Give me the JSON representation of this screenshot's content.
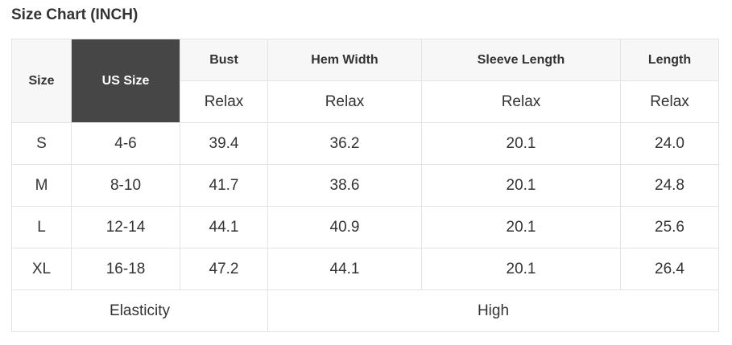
{
  "title": "Size Chart (INCH)",
  "headers": {
    "size": "Size",
    "us_size": "US Size",
    "bust": "Bust",
    "hem": "Hem Width",
    "sleeve": "Sleeve Length",
    "length": "Length"
  },
  "fit": [
    "Relax",
    "Relax",
    "Relax",
    "Relax"
  ],
  "rows": [
    [
      "S",
      "4-6",
      "39.4",
      "36.2",
      "20.1",
      "24.0"
    ],
    [
      "M",
      "8-10",
      "41.7",
      "38.6",
      "20.1",
      "24.8"
    ],
    [
      "L",
      "12-14",
      "44.1",
      "40.9",
      "20.1",
      "25.6"
    ],
    [
      "XL",
      "16-18",
      "47.2",
      "44.1",
      "20.1",
      "26.4"
    ]
  ],
  "footer": {
    "label": "Elasticity",
    "value": "High"
  },
  "colors": {
    "us_size_header_bg": "#464646",
    "header_bg": "#f7f7f7",
    "border": "#e3e3e3"
  }
}
